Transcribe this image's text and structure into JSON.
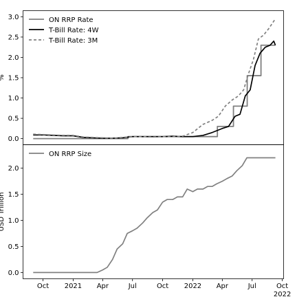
{
  "chart_data": [
    {
      "type": "line",
      "panel": "top",
      "ylabel": "%",
      "ylim": [
        -0.15,
        3.15
      ],
      "yticks": [
        0.0,
        0.5,
        1.0,
        1.5,
        2.0,
        2.5,
        3.0
      ],
      "ytick_labels": [
        "0.0",
        "0.5",
        "1.0",
        "1.5",
        "2.0",
        "2.5",
        "3.0"
      ],
      "legend_position": "top-left",
      "series": [
        {
          "name": "ON RRP Rate",
          "color": "#7f7f7f",
          "style": "step",
          "points": [
            [
              "2020-09-01",
              0.0
            ],
            [
              "2021-06-17",
              0.05
            ],
            [
              "2022-03-17",
              0.3
            ],
            [
              "2022-05-05",
              0.8
            ],
            [
              "2022-06-16",
              1.55
            ],
            [
              "2022-07-28",
              2.3
            ],
            [
              "2022-09-10",
              2.3
            ]
          ]
        },
        {
          "name": "T-Bill Rate: 4W",
          "color": "#000000",
          "style": "solid",
          "points": [
            [
              "2020-09-01",
              0.09
            ],
            [
              "2020-10-01",
              0.09
            ],
            [
              "2020-11-01",
              0.08
            ],
            [
              "2020-12-01",
              0.07
            ],
            [
              "2021-01-01",
              0.07
            ],
            [
              "2021-02-01",
              0.03
            ],
            [
              "2021-03-01",
              0.02
            ],
            [
              "2021-04-01",
              0.01
            ],
            [
              "2021-05-01",
              0.01
            ],
            [
              "2021-06-01",
              0.02
            ],
            [
              "2021-07-01",
              0.05
            ],
            [
              "2021-08-01",
              0.05
            ],
            [
              "2021-09-01",
              0.05
            ],
            [
              "2021-10-01",
              0.05
            ],
            [
              "2021-11-01",
              0.06
            ],
            [
              "2021-12-01",
              0.05
            ],
            [
              "2022-01-01",
              0.05
            ],
            [
              "2022-02-01",
              0.08
            ],
            [
              "2022-03-01",
              0.15
            ],
            [
              "2022-04-01",
              0.25
            ],
            [
              "2022-04-20",
              0.3
            ],
            [
              "2022-05-10",
              0.55
            ],
            [
              "2022-05-25",
              0.6
            ],
            [
              "2022-06-10",
              1.05
            ],
            [
              "2022-06-25",
              1.2
            ],
            [
              "2022-07-10",
              1.8
            ],
            [
              "2022-07-25",
              2.1
            ],
            [
              "2022-08-10",
              2.25
            ],
            [
              "2022-08-25",
              2.3
            ],
            [
              "2022-09-05",
              2.4
            ],
            [
              "2022-09-10",
              2.3
            ]
          ]
        },
        {
          "name": "T-Bill Rate: 3M",
          "color": "#808080",
          "style": "dashed",
          "points": [
            [
              "2020-09-01",
              0.11
            ],
            [
              "2020-10-01",
              0.1
            ],
            [
              "2020-11-01",
              0.09
            ],
            [
              "2020-12-01",
              0.08
            ],
            [
              "2021-01-01",
              0.08
            ],
            [
              "2021-02-01",
              0.04
            ],
            [
              "2021-03-01",
              0.03
            ],
            [
              "2021-04-01",
              0.02
            ],
            [
              "2021-05-01",
              0.01
            ],
            [
              "2021-06-01",
              0.03
            ],
            [
              "2021-07-01",
              0.05
            ],
            [
              "2021-08-01",
              0.05
            ],
            [
              "2021-09-01",
              0.04
            ],
            [
              "2021-10-01",
              0.05
            ],
            [
              "2021-11-01",
              0.05
            ],
            [
              "2021-12-01",
              0.06
            ],
            [
              "2022-01-01",
              0.15
            ],
            [
              "2022-02-01",
              0.35
            ],
            [
              "2022-03-01",
              0.45
            ],
            [
              "2022-03-20",
              0.55
            ],
            [
              "2022-04-10",
              0.8
            ],
            [
              "2022-05-01",
              0.95
            ],
            [
              "2022-05-20",
              1.05
            ],
            [
              "2022-06-05",
              1.2
            ],
            [
              "2022-06-20",
              1.6
            ],
            [
              "2022-07-05",
              1.95
            ],
            [
              "2022-07-20",
              2.45
            ],
            [
              "2022-08-05",
              2.55
            ],
            [
              "2022-08-20",
              2.7
            ],
            [
              "2022-09-10",
              2.95
            ]
          ]
        }
      ]
    },
    {
      "type": "line",
      "panel": "bottom",
      "ylabel": "USD Trillion",
      "ylim": [
        -0.12,
        2.45
      ],
      "yticks": [
        0.0,
        0.5,
        1.0,
        1.5,
        2.0
      ],
      "ytick_labels": [
        "0.0",
        "0.5",
        "1.0",
        "1.5",
        "2.0"
      ],
      "legend_position": "top-left",
      "series": [
        {
          "name": "ON RRP Size",
          "color": "#808080",
          "style": "solid",
          "points": [
            [
              "2020-09-01",
              0.0
            ],
            [
              "2020-12-01",
              0.0
            ],
            [
              "2021-02-01",
              0.0
            ],
            [
              "2021-03-15",
              0.0
            ],
            [
              "2021-04-01",
              0.05
            ],
            [
              "2021-04-15",
              0.1
            ],
            [
              "2021-05-01",
              0.25
            ],
            [
              "2021-05-15",
              0.45
            ],
            [
              "2021-06-01",
              0.55
            ],
            [
              "2021-06-15",
              0.75
            ],
            [
              "2021-07-01",
              0.8
            ],
            [
              "2021-07-15",
              0.85
            ],
            [
              "2021-08-01",
              0.95
            ],
            [
              "2021-08-15",
              1.05
            ],
            [
              "2021-09-01",
              1.15
            ],
            [
              "2021-09-15",
              1.2
            ],
            [
              "2021-10-01",
              1.35
            ],
            [
              "2021-10-15",
              1.4
            ],
            [
              "2021-11-01",
              1.4
            ],
            [
              "2021-11-15",
              1.45
            ],
            [
              "2021-12-01",
              1.45
            ],
            [
              "2021-12-15",
              1.6
            ],
            [
              "2022-01-01",
              1.55
            ],
            [
              "2022-01-15",
              1.6
            ],
            [
              "2022-02-01",
              1.6
            ],
            [
              "2022-02-15",
              1.65
            ],
            [
              "2022-03-01",
              1.65
            ],
            [
              "2022-03-15",
              1.7
            ],
            [
              "2022-04-01",
              1.75
            ],
            [
              "2022-04-15",
              1.8
            ],
            [
              "2022-05-01",
              1.85
            ],
            [
              "2022-05-15",
              1.95
            ],
            [
              "2022-06-01",
              2.05
            ],
            [
              "2022-06-15",
              2.2
            ],
            [
              "2022-07-01",
              2.2
            ],
            [
              "2022-07-15",
              2.2
            ],
            [
              "2022-08-01",
              2.2
            ],
            [
              "2022-08-15",
              2.2
            ],
            [
              "2022-09-10",
              2.2
            ]
          ]
        }
      ]
    }
  ],
  "x_axis": {
    "range": [
      "2020-08-01",
      "2022-10-05"
    ],
    "ticks": [
      {
        "date": "2020-10-01",
        "label": "Oct",
        "sublabel": ""
      },
      {
        "date": "2021-01-01",
        "label": "2021",
        "sublabel": ""
      },
      {
        "date": "2021-04-01",
        "label": "Apr",
        "sublabel": ""
      },
      {
        "date": "2021-07-01",
        "label": "Jul",
        "sublabel": ""
      },
      {
        "date": "2021-10-01",
        "label": "Oct",
        "sublabel": ""
      },
      {
        "date": "2022-01-01",
        "label": "2022",
        "sublabel": ""
      },
      {
        "date": "2022-04-01",
        "label": "Apr",
        "sublabel": ""
      },
      {
        "date": "2022-07-01",
        "label": "Jul",
        "sublabel": ""
      },
      {
        "date": "2022-10-01",
        "label": "Oct",
        "sublabel": "2022"
      }
    ]
  }
}
